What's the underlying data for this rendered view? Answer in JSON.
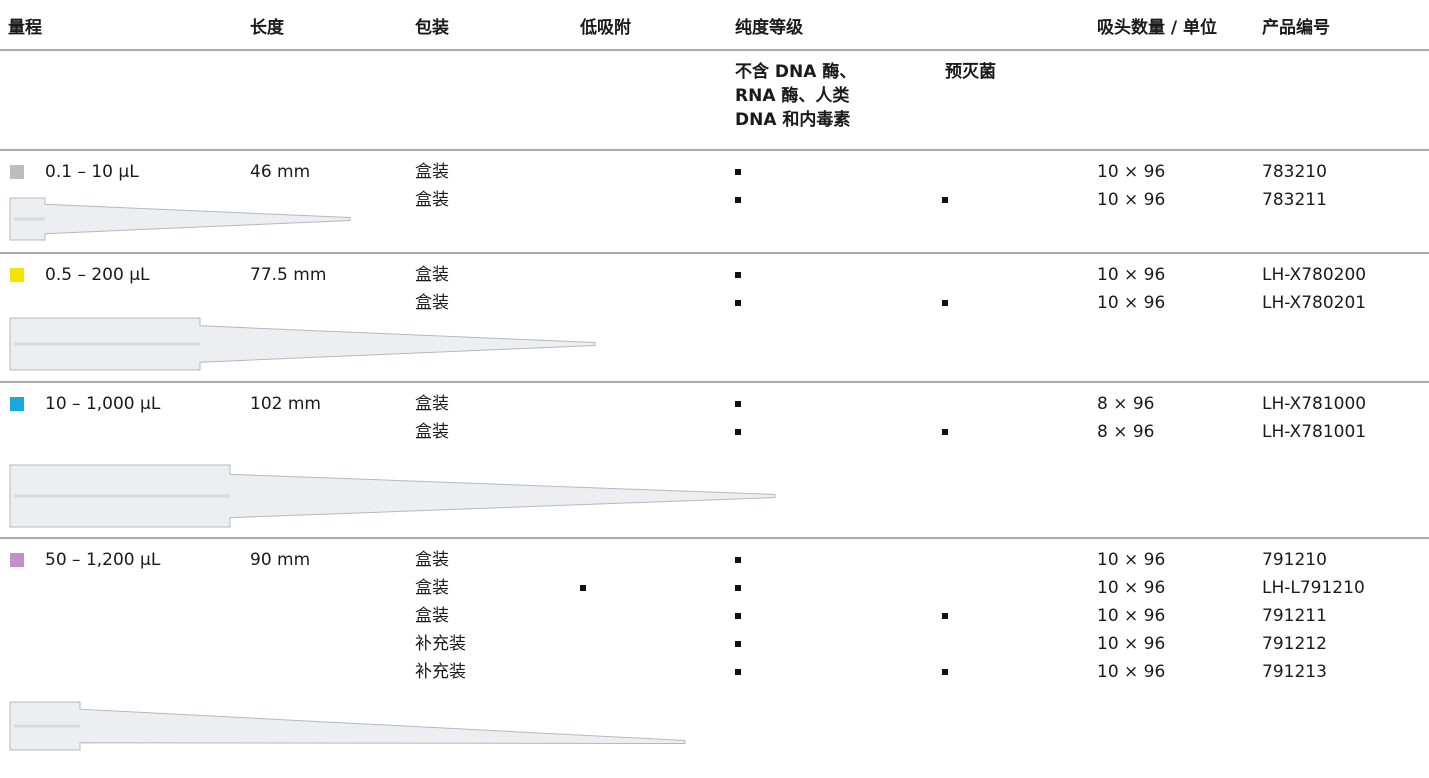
{
  "header": {
    "columns": [
      "量程",
      "长度",
      "包装",
      "低吸附",
      "纯度等级",
      "吸头数量 / 单位",
      "产品编号"
    ],
    "purity_subcolumns": [
      [
        "不含 DNA 酶、",
        "RNA 酶、人类",
        "DNA 和内毒素"
      ],
      [
        "预灭菌"
      ]
    ]
  },
  "groups": [
    {
      "range": "0.1 – 10 µL",
      "length": "46 mm",
      "color": "#bdbdbd",
      "rows": [
        {
          "package": "盒装",
          "low_binding": false,
          "dnase_free": true,
          "sterile": false,
          "quantity": "10 × 96",
          "product_no": "783210"
        },
        {
          "package": "盒装",
          "low_binding": false,
          "dnase_free": true,
          "sterile": true,
          "quantity": "10 × 96",
          "product_no": "783211"
        }
      ]
    },
    {
      "range": "0.5 – 200 µL",
      "length": "77.5 mm",
      "color": "#f5e400",
      "rows": [
        {
          "package": "盒装",
          "low_binding": false,
          "dnase_free": true,
          "sterile": false,
          "quantity": "10 × 96",
          "product_no": "LH-X780200"
        },
        {
          "package": "盒装",
          "low_binding": false,
          "dnase_free": true,
          "sterile": true,
          "quantity": "10 × 96",
          "product_no": "LH-X780201"
        }
      ]
    },
    {
      "range": "10 – 1,000 µL",
      "length": "102 mm",
      "color": "#1aa8e0",
      "rows": [
        {
          "package": "盒装",
          "low_binding": false,
          "dnase_free": true,
          "sterile": false,
          "quantity": "8 × 96",
          "product_no": "LH-X781000"
        },
        {
          "package": "盒装",
          "low_binding": false,
          "dnase_free": true,
          "sterile": true,
          "quantity": "8 × 96",
          "product_no": "LH-X781001"
        }
      ]
    },
    {
      "range": "50 – 1,200 µL",
      "length": "90 mm",
      "color": "#c290c9",
      "rows": [
        {
          "package": "盒装",
          "low_binding": false,
          "dnase_free": true,
          "sterile": false,
          "quantity": "10 × 96",
          "product_no": "791210"
        },
        {
          "package": "盒装",
          "low_binding": true,
          "dnase_free": true,
          "sterile": false,
          "quantity": "10 × 96",
          "product_no": "LH-L791210"
        },
        {
          "package": "盒装",
          "low_binding": false,
          "dnase_free": true,
          "sterile": true,
          "quantity": "10 × 96",
          "product_no": "791211"
        },
        {
          "package": "补充装",
          "low_binding": false,
          "dnase_free": true,
          "sterile": false,
          "quantity": "10 × 96",
          "product_no": "791212"
        },
        {
          "package": "补充装",
          "low_binding": false,
          "dnase_free": true,
          "sterile": true,
          "quantity": "10 × 96",
          "product_no": "791213"
        }
      ]
    }
  ]
}
